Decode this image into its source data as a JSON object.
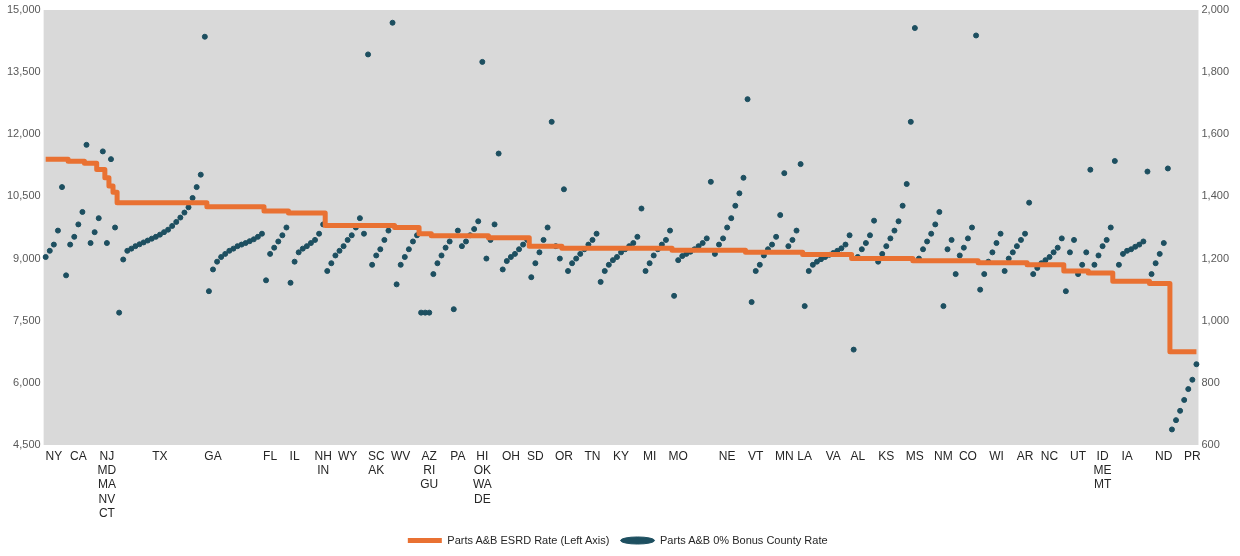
{
  "chart_data": {
    "type": "scatter",
    "grid": false,
    "legend": "bottom",
    "categories": [
      null,
      null,
      "NY",
      null,
      null,
      null,
      null,
      null,
      "CA",
      null,
      null,
      null,
      null,
      null,
      null,
      "NJ\nMD\nMA\nNV\nCT",
      null,
      null,
      null,
      null,
      null,
      null,
      null,
      null,
      null,
      null,
      null,
      null,
      "TX",
      null,
      null,
      null,
      null,
      null,
      null,
      null,
      null,
      null,
      null,
      null,
      null,
      "GA",
      null,
      null,
      null,
      null,
      null,
      null,
      null,
      null,
      null,
      null,
      null,
      null,
      null,
      "FL",
      null,
      null,
      null,
      null,
      null,
      "IL",
      null,
      null,
      null,
      null,
      null,
      null,
      "NH\nIN",
      null,
      null,
      null,
      null,
      null,
      "WY",
      null,
      null,
      null,
      null,
      null,
      null,
      "SC\nAK",
      null,
      null,
      null,
      null,
      null,
      "WV",
      null,
      null,
      null,
      null,
      null,
      null,
      "AZ\nRI\nGU",
      null,
      null,
      null,
      null,
      null,
      null,
      "PA",
      null,
      null,
      null,
      null,
      null,
      "HI\nOK\nWA\nDE",
      null,
      null,
      null,
      null,
      null,
      null,
      "OH",
      null,
      null,
      null,
      null,
      null,
      "SD",
      null,
      null,
      null,
      null,
      null,
      null,
      "OR",
      null,
      null,
      null,
      null,
      null,
      null,
      "TN",
      null,
      null,
      null,
      null,
      null,
      null,
      "KY",
      null,
      null,
      null,
      null,
      null,
      null,
      "MI",
      null,
      null,
      null,
      null,
      null,
      null,
      "MO",
      null,
      null,
      null,
      null,
      null,
      null,
      null,
      null,
      null,
      null,
      null,
      "NE",
      null,
      null,
      null,
      null,
      null,
      null,
      "VT",
      null,
      null,
      null,
      null,
      null,
      null,
      "MN",
      null,
      null,
      null,
      null,
      "LA",
      null,
      null,
      null,
      null,
      null,
      null,
      "VA",
      null,
      null,
      null,
      null,
      null,
      "AL",
      null,
      null,
      null,
      null,
      null,
      null,
      "KS",
      null,
      null,
      null,
      null,
      null,
      null,
      "MS",
      null,
      null,
      null,
      null,
      null,
      null,
      "NM",
      null,
      null,
      null,
      null,
      null,
      "CO",
      null,
      null,
      null,
      null,
      null,
      null,
      "WI",
      null,
      null,
      null,
      null,
      null,
      null,
      "AR",
      null,
      null,
      null,
      null,
      null,
      "NC",
      null,
      null,
      null,
      null,
      null,
      null,
      "UT",
      null,
      null,
      null,
      null,
      null,
      "ID\nME\nMT",
      null,
      null,
      null,
      null,
      null,
      "IA",
      null,
      null,
      null,
      null,
      null,
      null,
      null,
      null,
      "ND",
      null,
      null,
      null,
      null,
      null,
      null,
      "PR",
      null
    ],
    "ylim": [
      4500,
      15000
    ],
    "yticks": [
      {
        "value": 4500,
        "label": "4,500"
      },
      {
        "value": 6000,
        "label": "6,000"
      },
      {
        "value": 7500,
        "label": "7,500"
      },
      {
        "value": 9000,
        "label": "9,000"
      },
      {
        "value": 10500,
        "label": "10,500"
      },
      {
        "value": 12000,
        "label": "12,000"
      },
      {
        "value": 13500,
        "label": "13,500"
      },
      {
        "value": 15000,
        "label": "15,000"
      }
    ],
    "y2lim": [
      600,
      2000
    ],
    "y2ticks": [
      600,
      800,
      {
        "value": 1000,
        "label": "1,000"
      },
      {
        "value": 1200,
        "label": "1,200"
      },
      {
        "value": 1400,
        "label": "1,400"
      },
      {
        "value": 1600,
        "label": "1,600"
      },
      {
        "value": 1800,
        "label": "1,800"
      },
      {
        "value": 2000,
        "label": "2,000"
      }
    ],
    "series": [
      {
        "name": "Parts A&B ESRD Rate (Left Axis)",
        "type": "step",
        "marker": "none",
        "color": "#e97132",
        "values": [
          11400,
          11400,
          11400,
          11400,
          11400,
          11400,
          11350,
          11350,
          11350,
          11350,
          11300,
          11300,
          11300,
          11150,
          11150,
          10950,
          10750,
          10600,
          10350,
          10350,
          10350,
          10350,
          10350,
          10350,
          10350,
          10350,
          10350,
          10350,
          10350,
          10350,
          10350,
          10350,
          10350,
          10350,
          10350,
          10350,
          10350,
          10350,
          10350,
          10350,
          10250,
          10250,
          10250,
          10250,
          10250,
          10250,
          10250,
          10250,
          10250,
          10250,
          10250,
          10250,
          10250,
          10250,
          10150,
          10150,
          10150,
          10150,
          10150,
          10150,
          10100,
          10100,
          10100,
          10100,
          10100,
          10100,
          10100,
          10100,
          10100,
          9800,
          9800,
          9800,
          9800,
          9800,
          9800,
          9800,
          9800,
          9800,
          9800,
          9800,
          9800,
          9800,
          9800,
          9800,
          9800,
          9800,
          9750,
          9750,
          9750,
          9750,
          9750,
          9750,
          9600,
          9600,
          9600,
          9550,
          9550,
          9550,
          9550,
          9550,
          9550,
          9550,
          9550,
          9550,
          9550,
          9550,
          9550,
          9550,
          9550,
          9500,
          9500,
          9500,
          9500,
          9500,
          9500,
          9500,
          9500,
          9500,
          9500,
          9300,
          9300,
          9300,
          9300,
          9300,
          9300,
          9300,
          9300,
          9250,
          9250,
          9250,
          9250,
          9250,
          9250,
          9250,
          9250,
          9250,
          9250,
          9250,
          9250,
          9250,
          9250,
          9250,
          9250,
          9250,
          9250,
          9250,
          9250,
          9250,
          9250,
          9250,
          9250,
          9250,
          9250,
          9250,
          9200,
          9200,
          9200,
          9200,
          9200,
          9200,
          9200,
          9200,
          9200,
          9200,
          9200,
          9200,
          9200,
          9200,
          9200,
          9200,
          9200,
          9200,
          9150,
          9150,
          9150,
          9150,
          9150,
          9150,
          9150,
          9150,
          9150,
          9150,
          9150,
          9150,
          9150,
          9150,
          9100,
          9100,
          9100,
          9100,
          9100,
          9100,
          9100,
          9100,
          9100,
          9100,
          9100,
          9100,
          9000,
          9000,
          9000,
          9000,
          9000,
          9000,
          9000,
          9000,
          9000,
          9000,
          9000,
          9000,
          9000,
          9000,
          9000,
          8950,
          8950,
          8950,
          8950,
          8950,
          8950,
          8950,
          8950,
          8950,
          8950,
          8950,
          8950,
          8950,
          8950,
          8950,
          8950,
          8900,
          8900,
          8900,
          8900,
          8900,
          8900,
          8900,
          8900,
          8900,
          8900,
          8900,
          8900,
          8850,
          8850,
          8850,
          8850,
          8850,
          8850,
          8850,
          8850,
          8850,
          8700,
          8700,
          8700,
          8700,
          8700,
          8700,
          8650,
          8650,
          8650,
          8650,
          8650,
          8650,
          8450,
          8450,
          8450,
          8450,
          8450,
          8450,
          8450,
          8450,
          8450,
          8400,
          8400,
          8400,
          8400,
          8400,
          6750,
          6750,
          6750,
          6750,
          6750,
          6750,
          6750
        ]
      },
      {
        "name": "Parts A&B 0% Bonus County Rate",
        "axis": "y2",
        "marker": "circle",
        "color": "#1d4f60",
        "values": [
          1205,
          1225,
          1245,
          1290,
          1430,
          1146,
          1245,
          1270,
          1310,
          1350,
          1566,
          1250,
          1285,
          1330,
          1545,
          1250,
          1520,
          1300,
          1026,
          1197,
          1225,
          1232,
          1240,
          1246,
          1252,
          1258,
          1264,
          1270,
          1277,
          1285,
          1293,
          1305,
          1318,
          1332,
          1348,
          1365,
          1395,
          1430,
          1470,
          1914,
          1095,
          1165,
          1190,
          1205,
          1215,
          1225,
          1232,
          1240,
          1245,
          1250,
          1256,
          1262,
          1270,
          1280,
          1130,
          1215,
          1235,
          1255,
          1275,
          1300,
          1122,
          1190,
          1220,
          1232,
          1240,
          1250,
          1260,
          1280,
          1310,
          1160,
          1185,
          1210,
          1225,
          1240,
          1260,
          1275,
          1300,
          1330,
          1280,
          1857,
          1180,
          1210,
          1230,
          1260,
          1290,
          1959,
          1117,
          1180,
          1205,
          1230,
          1255,
          1275,
          1026,
          1026,
          1026,
          1150,
          1185,
          1210,
          1235,
          1255,
          1037,
          1290,
          1240,
          1255,
          1275,
          1295,
          1320,
          1833,
          1200,
          1260,
          1310,
          1538,
          1165,
          1192,
          1205,
          1215,
          1230,
          1245,
          1260,
          1140,
          1185,
          1220,
          1260,
          1300,
          1640,
          1240,
          1200,
          1423,
          1160,
          1185,
          1200,
          1215,
          1230,
          1245,
          1260,
          1280,
          1125,
          1160,
          1180,
          1195,
          1205,
          1220,
          1230,
          1240,
          1250,
          1270,
          1361,
          1160,
          1185,
          1210,
          1230,
          1245,
          1260,
          1290,
          1080,
          1195,
          1208,
          1215,
          1222,
          1230,
          1240,
          1250,
          1265,
          1447,
          1215,
          1245,
          1265,
          1300,
          1330,
          1370,
          1410,
          1460,
          1713,
          1060,
          1160,
          1180,
          1210,
          1230,
          1245,
          1270,
          1340,
          1475,
          1240,
          1260,
          1290,
          1504,
          1047,
          1160,
          1180,
          1190,
          1198,
          1205,
          1212,
          1218,
          1225,
          1233,
          1245,
          1275,
          907,
          1205,
          1230,
          1250,
          1275,
          1322,
          1190,
          1215,
          1240,
          1265,
          1290,
          1320,
          1370,
          1440,
          1640,
          1942,
          1200,
          1230,
          1255,
          1280,
          1310,
          1350,
          1047,
          1230,
          1260,
          1150,
          1210,
          1235,
          1265,
          1300,
          1918,
          1100,
          1150,
          1190,
          1220,
          1250,
          1280,
          1160,
          1200,
          1220,
          1240,
          1260,
          1280,
          1380,
          1150,
          1170,
          1185,
          1195,
          1205,
          1220,
          1235,
          1265,
          1095,
          1220,
          1260,
          1150,
          1180,
          1220,
          1486,
          1180,
          1210,
          1240,
          1260,
          1300,
          1514,
          1180,
          1215,
          1225,
          1230,
          1238,
          1245,
          1255,
          1480,
          1150,
          1185,
          1215,
          1250,
          1490,
          650,
          680,
          710,
          745,
          780,
          810,
          860
        ]
      }
    ]
  }
}
